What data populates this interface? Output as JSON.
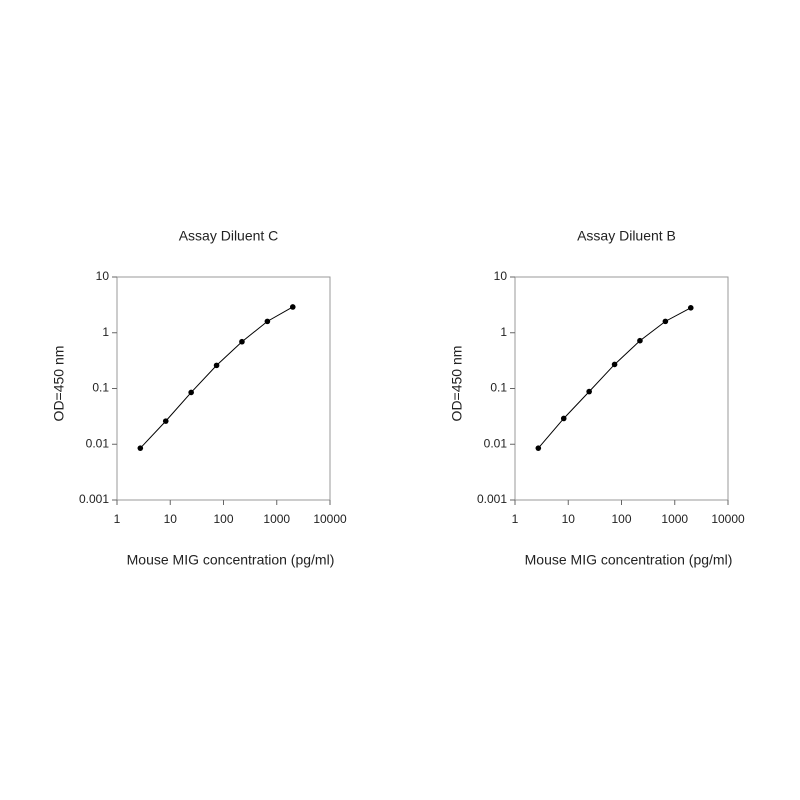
{
  "chart_data": [
    {
      "type": "line",
      "title": "Assay Diluent C",
      "xlabel": "Mouse MIG concentration (pg/ml)",
      "ylabel": "OD=450 nm",
      "x": [
        2.74,
        8.23,
        24.7,
        74.1,
        222,
        667,
        2000
      ],
      "series": [
        {
          "color": "#000000",
          "values": [
            0.0085,
            0.026,
            0.085,
            0.26,
            0.69,
            1.6,
            2.9
          ]
        }
      ],
      "xlim": [
        1,
        10000
      ],
      "ylim": [
        0.001,
        10
      ],
      "xticks": [
        1,
        10,
        100,
        1000,
        10000
      ],
      "yticks": [
        0.001,
        0.01,
        0.1,
        1,
        10
      ],
      "xlog": true,
      "ylog": true
    },
    {
      "type": "line",
      "title": "Assay Diluent B",
      "xlabel": "Mouse MIG concentration (pg/ml)",
      "ylabel": "OD=450 nm",
      "x": [
        2.74,
        8.23,
        24.7,
        74.1,
        222,
        667,
        2000
      ],
      "series": [
        {
          "color": "#000000",
          "values": [
            0.0085,
            0.029,
            0.088,
            0.27,
            0.72,
            1.6,
            2.8
          ]
        }
      ],
      "xlim": [
        1,
        10000
      ],
      "ylim": [
        0.001,
        10
      ],
      "xticks": [
        1,
        10,
        100,
        1000,
        10000
      ],
      "yticks": [
        0.001,
        0.01,
        0.1,
        1,
        10
      ],
      "xlog": true,
      "ylog": true
    }
  ]
}
